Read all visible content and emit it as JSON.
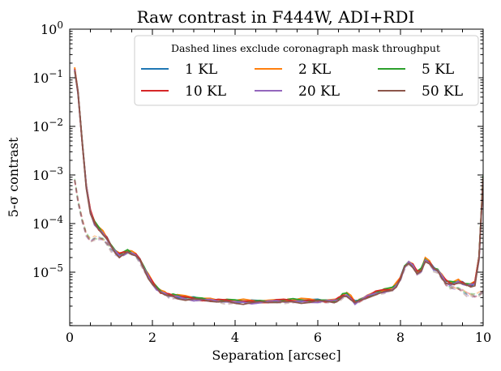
{
  "chart_data": {
    "type": "line",
    "title": "Raw contrast in F444W, ADI+RDI",
    "xlabel": "Separation [arcsec]",
    "ylabel": "5-σ contrast",
    "xlim": [
      0,
      10
    ],
    "ylim_log10": [
      -6.1,
      0
    ],
    "yscale": "log",
    "xticks": [
      0,
      2,
      4,
      6,
      8,
      10
    ],
    "xtick_labels": [
      "0",
      "2",
      "4",
      "6",
      "8",
      "10"
    ],
    "yticks": [
      1,
      0.1,
      0.01,
      0.001,
      0.0001,
      1e-05
    ],
    "ytick_labels": [
      {
        "base": "10",
        "exp": "0"
      },
      {
        "base": "10",
        "exp": "−1"
      },
      {
        "base": "10",
        "exp": "−2"
      },
      {
        "base": "10",
        "exp": "−3"
      },
      {
        "base": "10",
        "exp": "−4"
      },
      {
        "base": "10",
        "exp": "−5"
      }
    ],
    "legend": {
      "title": "Dashed lines exclude coronagraph mask throughput",
      "placement": "top-right",
      "columns": 3
    },
    "series": [
      {
        "name": "1 KL",
        "color": "#1f77b4",
        "scale": 1.0
      },
      {
        "name": "2 KL",
        "color": "#ff7f0e",
        "scale": 1.04
      },
      {
        "name": "5 KL",
        "color": "#2ca02c",
        "scale": 1.02
      },
      {
        "name": "10 KL",
        "color": "#d62728",
        "scale": 1.0
      },
      {
        "name": "20 KL",
        "color": "#9467bd",
        "scale": 0.96
      },
      {
        "name": "50 KL",
        "color": "#8c564b",
        "scale": 0.94
      }
    ],
    "solid_base": {
      "x": [
        0.12,
        0.2,
        0.3,
        0.4,
        0.5,
        0.6,
        0.7,
        0.8,
        0.9,
        1.0,
        1.1,
        1.2,
        1.3,
        1.4,
        1.5,
        1.6,
        1.7,
        1.8,
        1.9,
        2.0,
        2.1,
        2.2,
        2.3,
        2.4,
        2.5,
        2.6,
        2.8,
        3.0,
        3.2,
        3.4,
        3.6,
        3.8,
        4.0,
        4.2,
        4.4,
        4.6,
        4.8,
        5.0,
        5.2,
        5.4,
        5.6,
        5.8,
        6.0,
        6.2,
        6.4,
        6.5,
        6.6,
        6.7,
        6.8,
        6.9,
        7.0,
        7.2,
        7.4,
        7.6,
        7.8,
        7.9,
        8.0,
        8.1,
        8.2,
        8.3,
        8.4,
        8.5,
        8.6,
        8.7,
        8.8,
        8.9,
        9.0,
        9.1,
        9.2,
        9.3,
        9.4,
        9.5,
        9.6,
        9.7,
        9.8,
        9.9,
        10.0
      ],
      "y": [
        0.15,
        0.05,
        0.005,
        0.0006,
        0.00018,
        0.000105,
        8e-05,
        6.5e-05,
        5e-05,
        3.5e-05,
        2.7e-05,
        2.3e-05,
        2.5e-05,
        2.7e-05,
        2.5e-05,
        2.3e-05,
        1.8e-05,
        1.2e-05,
        8.5e-06,
        6.2e-06,
        4.8e-06,
        4e-06,
        3.7e-06,
        3.4e-06,
        3.3e-06,
        3.2e-06,
        3e-06,
        2.9e-06,
        2.8e-06,
        2.7e-06,
        2.6e-06,
        2.6e-06,
        2.5e-06,
        2.5e-06,
        2.5e-06,
        2.5e-06,
        2.5e-06,
        2.6e-06,
        2.6e-06,
        2.6e-06,
        2.6e-06,
        2.6e-06,
        2.6e-06,
        2.6e-06,
        2.6e-06,
        2.8e-06,
        3.3e-06,
        3.5e-06,
        3e-06,
        2.4e-06,
        2.6e-06,
        3.2e-06,
        3.8e-06,
        4.2e-06,
        4.5e-06,
        5.5e-06,
        7.5e-06,
        1.3e-05,
        1.6e-05,
        1.4e-05,
        1e-05,
        1.1e-05,
        1.8e-05,
        1.6e-05,
        1.2e-05,
        1.1e-05,
        8.5e-06,
        6.5e-06,
        6e-06,
        6e-06,
        6.5e-06,
        6e-06,
        5.5e-06,
        5.5e-06,
        6e-06,
        2e-05,
        0.0009
      ]
    },
    "dashed_base": {
      "x": [
        0.12,
        0.2,
        0.3,
        0.4,
        0.5,
        0.6,
        0.7,
        0.8,
        0.9,
        1.0,
        1.1,
        1.2,
        1.3,
        1.4,
        1.5,
        1.6,
        1.7,
        1.8,
        1.9,
        2.0,
        2.1,
        2.2,
        2.3,
        2.4,
        2.5,
        2.6,
        2.8,
        3.0,
        3.2,
        3.4,
        3.6,
        3.8,
        4.0,
        4.2,
        4.4,
        4.6,
        4.8,
        5.0,
        5.2,
        5.4,
        5.6,
        5.8,
        6.0,
        6.2,
        6.4,
        6.5,
        6.6,
        6.7,
        6.8,
        6.9,
        7.0,
        7.2,
        7.4,
        7.6,
        7.8,
        7.9,
        8.0,
        8.1,
        8.2,
        8.3,
        8.4,
        8.5,
        8.6,
        8.7,
        8.8,
        8.9,
        9.0,
        9.1,
        9.2,
        9.3,
        9.4,
        9.5,
        9.6,
        9.7,
        9.8,
        9.9,
        10.0
      ],
      "y": [
        0.0008,
        0.0003,
        0.00012,
        6e-05,
        4.5e-05,
        5e-05,
        5e-05,
        4.8e-05,
        4e-05,
        3e-05,
        2.5e-05,
        2.2e-05,
        2.4e-05,
        2.6e-05,
        2.4e-05,
        2.2e-05,
        1.7e-05,
        1.15e-05,
        8.2e-06,
        6e-06,
        4.7e-06,
        3.9e-06,
        3.6e-06,
        3.3e-06,
        3.2e-06,
        3.1e-06,
        2.9e-06,
        2.8e-06,
        2.7e-06,
        2.6e-06,
        2.6e-06,
        2.5e-06,
        2.5e-06,
        2.5e-06,
        2.4e-06,
        2.5e-06,
        2.5e-06,
        2.5e-06,
        2.6e-06,
        2.6e-06,
        2.6e-06,
        2.6e-06,
        2.6e-06,
        2.5e-06,
        2.5e-06,
        2.7e-06,
        3.2e-06,
        3.4e-06,
        2.9e-06,
        2.4e-06,
        2.6e-06,
        3.1e-06,
        3.7e-06,
        4.1e-06,
        4.4e-06,
        5.4e-06,
        7.3e-06,
        1.25e-05,
        1.55e-05,
        1.35e-05,
        9.8e-06,
        1.05e-05,
        1.75e-05,
        1.55e-05,
        1.15e-05,
        1.05e-05,
        7.8e-06,
        5.8e-06,
        5e-06,
        4.8e-06,
        4.6e-06,
        4.2e-06,
        3.6e-06,
        3.4e-06,
        3.3e-06,
        3.5e-06,
        4e-06
      ]
    }
  }
}
